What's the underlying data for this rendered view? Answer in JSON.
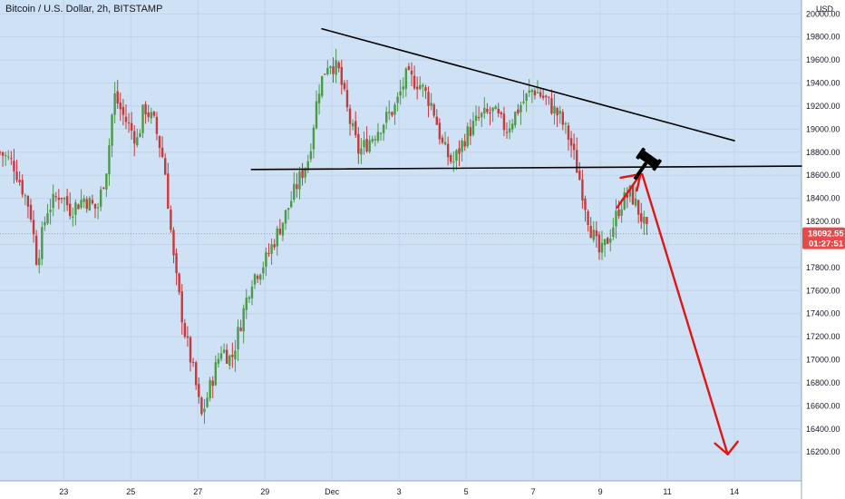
{
  "header": {
    "title": "Bitcoin / U.S. Dollar, 2h, BITSTAMP"
  },
  "colors": {
    "background": "#cfe1f4",
    "axis_background": "#ffffff",
    "up": "#4a9a47",
    "down": "#c53a3a",
    "trendline": "#000000",
    "arrow": "#e01616",
    "price_badge": "#e84a4a",
    "gridline": "#c0d4ea"
  },
  "chart_data": {
    "type": "candlestick",
    "series_name": "",
    "currency_label": "USD",
    "y_axis": {
      "range": [
        15950,
        20120
      ],
      "ticks": [
        16200,
        16400,
        16600,
        16800,
        17000,
        17200,
        17400,
        17600,
        17800,
        18000,
        18200,
        18400,
        18600,
        18800,
        19000,
        19200,
        19400,
        19600,
        19800,
        20000
      ],
      "tick_labels": [
        "16200.00",
        "16400.00",
        "16600.00",
        "16800.00",
        "17000.00",
        "17200.00",
        "17400.00",
        "17600.00",
        "17800.00",
        "18000.00",
        "18200.00",
        "18400.00",
        "18600.00",
        "18800.00",
        "19000.00",
        "19200.00",
        "19400.00",
        "19600.00",
        "19800.00",
        "20000.00"
      ]
    },
    "x_axis": {
      "range": [
        21.1,
        45.0
      ],
      "ticks": [
        {
          "pos": 23,
          "label": "23"
        },
        {
          "pos": 25,
          "label": "25"
        },
        {
          "pos": 27,
          "label": "27"
        },
        {
          "pos": 29,
          "label": "29"
        },
        {
          "pos": 31,
          "label": "Dec"
        },
        {
          "pos": 33,
          "label": "3"
        },
        {
          "pos": 35,
          "label": "5"
        },
        {
          "pos": 37,
          "label": "7"
        },
        {
          "pos": 39,
          "label": "9"
        },
        {
          "pos": 41,
          "label": "11"
        },
        {
          "pos": 43,
          "label": "14"
        }
      ]
    },
    "grid": true,
    "last_price": {
      "value": 18092.55,
      "label": "18092.55",
      "countdown": "01:27:51"
    },
    "path_points": [
      [
        21.1,
        18800
      ],
      [
        21.5,
        18700
      ],
      [
        22.0,
        18300
      ],
      [
        22.2,
        17850
      ],
      [
        22.5,
        18300
      ],
      [
        22.9,
        18450
      ],
      [
        23.2,
        18300
      ],
      [
        23.6,
        18400
      ],
      [
        24.0,
        18300
      ],
      [
        24.3,
        18700
      ],
      [
        24.5,
        19300
      ],
      [
        24.8,
        19100
      ],
      [
        25.2,
        18900
      ],
      [
        25.4,
        19200
      ],
      [
        25.7,
        19050
      ],
      [
        26.0,
        18700
      ],
      [
        26.3,
        17800
      ],
      [
        26.6,
        17250
      ],
      [
        26.9,
        16850
      ],
      [
        27.1,
        16500
      ],
      [
        27.4,
        16800
      ],
      [
        27.7,
        17100
      ],
      [
        28.0,
        17000
      ],
      [
        28.3,
        17350
      ],
      [
        28.6,
        17700
      ],
      [
        29.0,
        17850
      ],
      [
        29.3,
        18050
      ],
      [
        29.6,
        18250
      ],
      [
        30.0,
        18550
      ],
      [
        30.3,
        18750
      ],
      [
        30.6,
        19350
      ],
      [
        30.9,
        19600
      ],
      [
        31.2,
        19500
      ],
      [
        31.5,
        19100
      ],
      [
        31.8,
        18800
      ],
      [
        32.1,
        18900
      ],
      [
        32.5,
        19050
      ],
      [
        32.9,
        19200
      ],
      [
        33.2,
        19450
      ],
      [
        33.6,
        19400
      ],
      [
        34.0,
        19200
      ],
      [
        34.3,
        18850
      ],
      [
        34.6,
        18700
      ],
      [
        35.0,
        18950
      ],
      [
        35.4,
        19100
      ],
      [
        35.8,
        19150
      ],
      [
        36.2,
        19000
      ],
      [
        36.6,
        19200
      ],
      [
        37.0,
        19350
      ],
      [
        37.4,
        19250
      ],
      [
        37.8,
        19100
      ],
      [
        38.1,
        18900
      ],
      [
        38.4,
        18550
      ],
      [
        38.7,
        18150
      ],
      [
        39.0,
        17900
      ],
      [
        39.3,
        18100
      ],
      [
        39.6,
        18350
      ],
      [
        39.9,
        18450
      ],
      [
        40.2,
        18250
      ],
      [
        40.4,
        18090
      ]
    ],
    "annotations": {
      "resistance_line": [
        [
          30.7,
          19870
        ],
        [
          43.0,
          18900
        ]
      ],
      "support_line": [
        [
          28.6,
          18650
        ],
        [
          45.0,
          18680
        ]
      ],
      "arrow_up": {
        "from": [
          39.5,
          18320
        ],
        "to": [
          40.2,
          18610
        ]
      },
      "arrow_down": {
        "from": [
          40.25,
          18610
        ],
        "to": [
          42.8,
          16180
        ],
        "tail_to": [
          43.1,
          16290
        ]
      },
      "gavel_icon": {
        "at": [
          40.4,
          18720
        ]
      }
    }
  }
}
